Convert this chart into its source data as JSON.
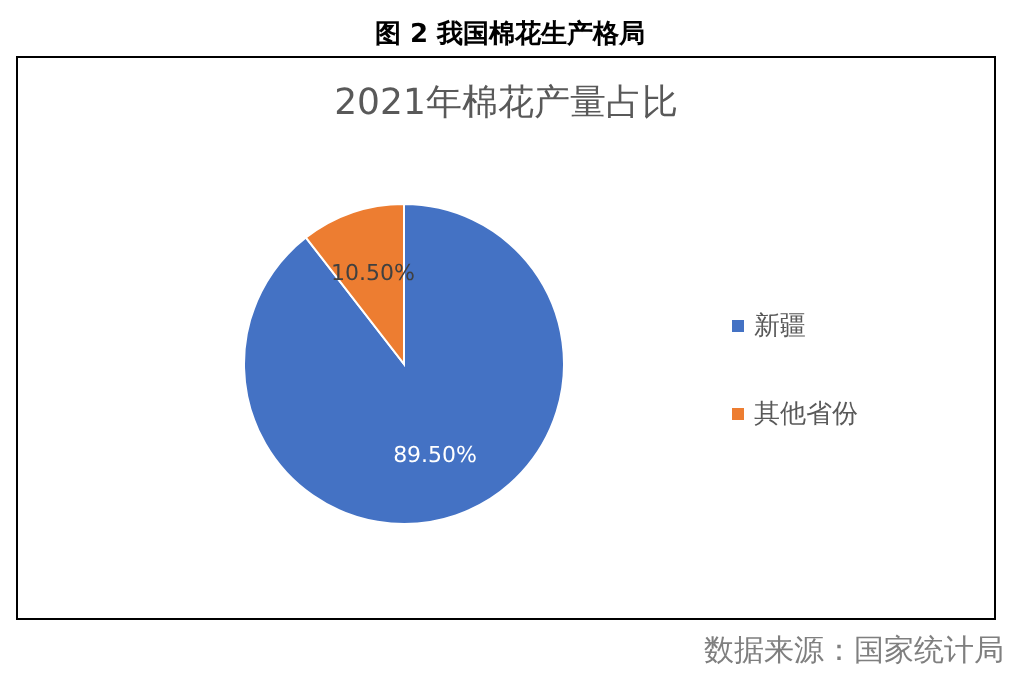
{
  "chart_data": {
    "type": "pie",
    "title": "图 2  我国棉花生产格局",
    "subtitle": "2021年棉花产量占比",
    "categories": [
      "新疆",
      "其他省份"
    ],
    "values": [
      89.5,
      10.5
    ],
    "colors": [
      "#4472c4",
      "#ed7d31"
    ],
    "value_labels": [
      "89.50%",
      "10.50%"
    ],
    "legend": "right",
    "annotations": [
      "数据来源：国家统计局"
    ]
  }
}
